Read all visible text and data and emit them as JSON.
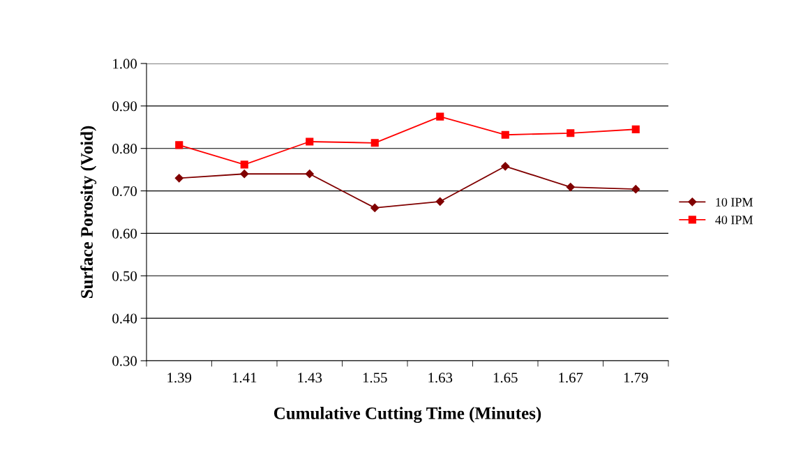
{
  "chart_data": {
    "type": "line",
    "xlabel": "Cumulative Cutting Time (Minutes)",
    "ylabel": "Surface Porosity (Void)",
    "categories": [
      "1.39",
      "1.41",
      "1.43",
      "1.55",
      "1.63",
      "1.65",
      "1.67",
      "1.79"
    ],
    "series": [
      {
        "name": "10 IPM",
        "color": "#800000",
        "marker": "diamond",
        "values": [
          0.73,
          0.74,
          0.74,
          0.66,
          0.675,
          0.758,
          0.709,
          0.704
        ]
      },
      {
        "name": "40 IPM",
        "color": "#ff0000",
        "marker": "square",
        "values": [
          0.808,
          0.762,
          0.816,
          0.813,
          0.875,
          0.832,
          0.836,
          0.845
        ]
      }
    ],
    "ylim": [
      0.3,
      1.0
    ],
    "yticks": [
      {
        "value": 0.3,
        "label": "0.30"
      },
      {
        "value": 0.4,
        "label": "0.40"
      },
      {
        "value": 0.5,
        "label": "0.50"
      },
      {
        "value": 0.6,
        "label": "0.60"
      },
      {
        "value": 0.7,
        "label": "0.70"
      },
      {
        "value": 0.8,
        "label": "0.80"
      },
      {
        "value": 0.9,
        "label": "0.90"
      },
      {
        "value": 1.0,
        "label": "1.00"
      }
    ],
    "grid": "y",
    "legend": "right",
    "line_style": "solid"
  }
}
